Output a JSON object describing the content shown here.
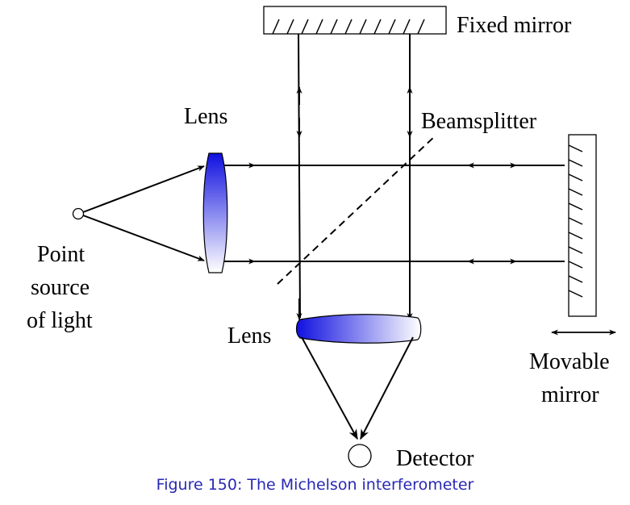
{
  "labels": {
    "fixed_mirror": "Fixed mirror",
    "beamsplitter": "Beamsplitter",
    "lens_left": "Lens",
    "lens_bottom": "Lens",
    "point_source_line1": "Point",
    "point_source_line2": "source",
    "point_source_line3": "of light",
    "detector": "Detector",
    "movable_mirror_line1": "Movable",
    "movable_mirror_line2": "mirror"
  },
  "caption": "Figure 150: The Michelson interferometer",
  "colors": {
    "lens_blue": "#1010e0",
    "caption_blue": "#2828b4",
    "line": "#000000"
  }
}
